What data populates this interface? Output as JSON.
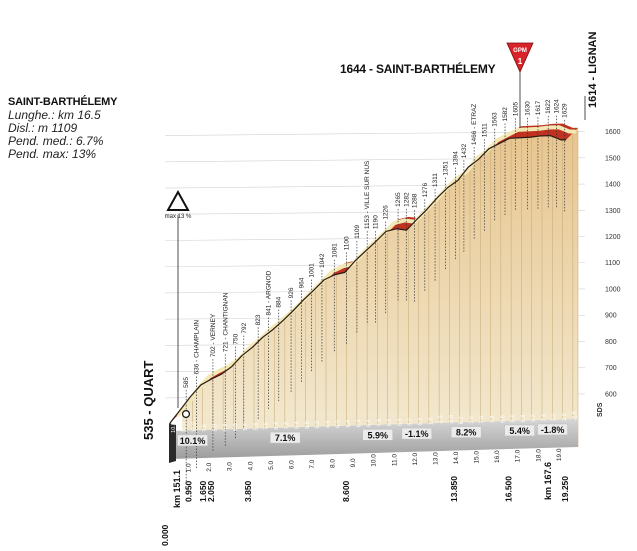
{
  "info": {
    "title": "SAINT-BARTHÉLEMY",
    "length": "Lunghe.: km 16.5",
    "climb": "Disl.: m 1109",
    "avg_grade": "Pend. med.: 6.7%",
    "max_grade": "Pend. max: 13%"
  },
  "summit_title": "1644 - SAINT-BARTHÉLEMY",
  "gpm": {
    "label": "GPM",
    "category": "1"
  },
  "max_badge": "max 13 %",
  "end_label": "1614 - LIGNAN",
  "start_label": "535 - QUART",
  "axis_unit": "SDS",
  "colors": {
    "profile_fill": "#e6cd9a",
    "road": "#c2301e",
    "road_top": "#f3e7b4",
    "base": "#a7a7a7"
  },
  "chart_data": {
    "type": "area",
    "title": "1644 - SAINT-BARTHÉLEMY",
    "ylim": [
      535,
      1644
    ],
    "y_ticks": [
      600,
      700,
      800,
      900,
      1000,
      1100,
      1200,
      1300,
      1400,
      1500,
      1600
    ],
    "y_tick_labels": [
      "600",
      "700",
      "800",
      "900",
      "1000",
      "1100",
      "1200",
      "1300",
      "1400",
      "1500",
      "1600"
    ],
    "profile": {
      "x_km": [
        0,
        0.5,
        1,
        1.5,
        2,
        2.5,
        3,
        3.5,
        4,
        4.5,
        5,
        5.5,
        6,
        6.5,
        7,
        7.5,
        8,
        8.5,
        9,
        9.5,
        10,
        10.5,
        11,
        11.5,
        12,
        12.5,
        13,
        13.5,
        14,
        14.5,
        15,
        15.5,
        16,
        16.5,
        17,
        17.5,
        18,
        18.5,
        19,
        19.25
      ],
      "elevation_m": [
        535,
        585,
        636,
        680,
        702,
        721,
        750,
        792,
        823,
        861,
        891,
        926,
        964,
        1005,
        1042,
        1081,
        1100,
        1109,
        1153,
        1190,
        1226,
        1265,
        1275,
        1270,
        1311,
        1350,
        1394,
        1432,
        1460,
        1510,
        1540,
        1580,
        1600,
        1620,
        1622,
        1624,
        1629,
        1630,
        1614,
        1614
      ]
    },
    "point_labels": [
      {
        "km": 0.3,
        "elev": "585"
      },
      {
        "km": 0.8,
        "elev": "636",
        "name": "CHAMPLAIN"
      },
      {
        "km": 1.6,
        "elev": "702",
        "name": "VERNEY"
      },
      {
        "km": 2.2,
        "elev": "721",
        "name": "CHANTIGNAN"
      },
      {
        "km": 2.7,
        "elev": "750"
      },
      {
        "km": 3.1,
        "elev": "792"
      },
      {
        "km": 3.8,
        "elev": "823"
      },
      {
        "km": 4.3,
        "elev": "841",
        "name": "ARGNOD"
      },
      {
        "km": 4.8,
        "elev": "884"
      },
      {
        "km": 5.4,
        "elev": "926"
      },
      {
        "km": 5.9,
        "elev": "964"
      },
      {
        "km": 6.4,
        "elev": "1001"
      },
      {
        "km": 6.9,
        "elev": "1042"
      },
      {
        "km": 7.5,
        "elev": "1081"
      },
      {
        "km": 8.1,
        "elev": "1100"
      },
      {
        "km": 8.6,
        "elev": "1109"
      },
      {
        "km": 9.1,
        "elev": "1153",
        "name": "VILLE SUR NUS"
      },
      {
        "km": 9.5,
        "elev": "1190"
      },
      {
        "km": 10.0,
        "elev": "1226"
      },
      {
        "km": 10.6,
        "elev": "1265"
      },
      {
        "km": 11.0,
        "elev": "1282"
      },
      {
        "km": 11.4,
        "elev": "1288"
      },
      {
        "km": 11.9,
        "elev": "1276"
      },
      {
        "km": 12.4,
        "elev": "1311"
      },
      {
        "km": 12.9,
        "elev": "1351"
      },
      {
        "km": 13.4,
        "elev": "1394"
      },
      {
        "km": 13.8,
        "elev": "1432"
      },
      {
        "km": 14.3,
        "elev": "1466",
        "name": "ETRAZ"
      },
      {
        "km": 14.8,
        "elev": "1511"
      },
      {
        "km": 15.3,
        "elev": "1563"
      },
      {
        "km": 15.8,
        "elev": "1582"
      },
      {
        "km": 16.3,
        "elev": "1605"
      },
      {
        "km": 16.9,
        "elev": "1630"
      },
      {
        "km": 17.4,
        "elev": "1617"
      },
      {
        "km": 17.9,
        "elev": "1622"
      },
      {
        "km": 18.3,
        "elev": "1624"
      },
      {
        "km": 18.7,
        "elev": "1629"
      }
    ],
    "segment_grades": [
      "10.0",
      "11.0",
      "11.8",
      "7.6",
      "5.0",
      "6.4",
      "6.8",
      "5.9",
      "5.6",
      "7.6",
      "8.4",
      "7.8",
      "8.4",
      "8.0",
      "6.2",
      "4.6",
      "6.0",
      "6.4",
      "6.4",
      "6.4",
      "7.8",
      "8.2",
      "8.8",
      "9.2",
      "9.2",
      "1.0",
      "-1.6",
      "-1.0",
      "8.2",
      "7.0",
      "7.8",
      "7.2",
      "8.6",
      "8.4",
      "8.8",
      "9.2",
      "7.4",
      "3.2",
      "2.2",
      "-2.8"
    ],
    "gradient_boxes": [
      {
        "label": "10.1%",
        "km": 1.0
      },
      {
        "label": "7.1%",
        "km": 5.5
      },
      {
        "label": "5.9%",
        "km": 10.0
      },
      {
        "label": "-1.1%",
        "km": 11.9
      },
      {
        "label": "8.2%",
        "km": 14.3
      },
      {
        "label": "5.4%",
        "km": 16.9
      },
      {
        "label": "-1.8%",
        "km": 18.5
      }
    ],
    "x_tick_labels": [
      "1.0",
      "2.0",
      "3.0",
      "4.0",
      "5.0",
      "6.0",
      "7.0",
      "8.0",
      "9.0",
      "10.0",
      "11.0",
      "12.0",
      "13.0",
      "14.0",
      "15.0",
      "16.0",
      "17.0",
      "18.0",
      "19.0"
    ],
    "bottom_distances": [
      "0.000",
      "0.950",
      "1.650",
      "2.050",
      "3.850",
      "8.600",
      "13.850",
      "16.500",
      "19.250"
    ],
    "km_markers": [
      "km 151.1",
      "km 167.6"
    ]
  }
}
